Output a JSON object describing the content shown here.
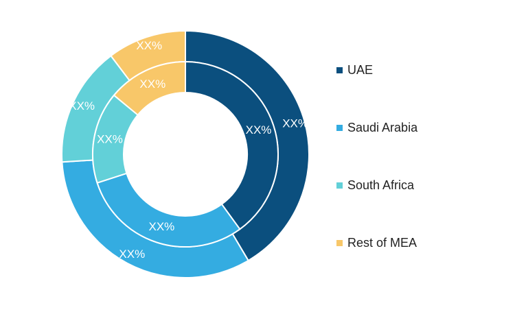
{
  "chart_data": {
    "type": "pie",
    "legend_position": "right",
    "categories": [
      "UAE",
      "Saudi Arabia",
      "South Africa",
      "Rest of MEA"
    ],
    "series": [
      {
        "values": [
          41.5,
          32.5,
          15.7,
          10.3
        ],
        "labels": [
          "XX%",
          "XX%",
          "XX%",
          "XX%"
        ]
      },
      {
        "values": [
          40,
          30,
          16,
          14
        ],
        "labels": [
          "XX%",
          "XX%",
          "XX%",
          "XX%"
        ]
      }
    ],
    "colors": [
      "#0b4f7e",
      "#34ace1",
      "#62d0d8",
      "#f8c769"
    ]
  }
}
